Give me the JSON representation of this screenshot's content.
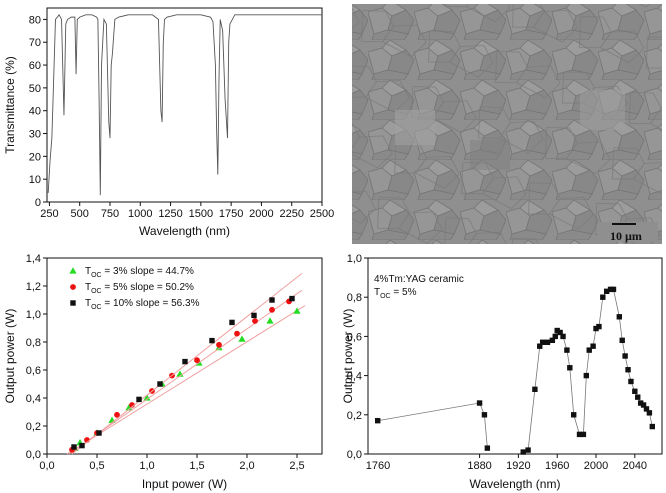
{
  "chart_data": [
    {
      "type": "line",
      "panel": "top-left",
      "xlabel": "Wavelength (nm)",
      "ylabel": "Transmittance (%)",
      "xlim": [
        230,
        2500
      ],
      "ylim": [
        0,
        85
      ],
      "xticks": [
        "250",
        "500",
        "750",
        "1000",
        "1250",
        "1500",
        "1750",
        "2000",
        "2250",
        "2500"
      ],
      "yticks": [
        "0",
        "10",
        "20",
        "30",
        "40",
        "50",
        "60",
        "70",
        "80"
      ],
      "series": [
        {
          "color": "#555555",
          "x": [
            240,
            255,
            270,
            280,
            300,
            330,
            350,
            370,
            385,
            400,
            430,
            460,
            470,
            480,
            500,
            550,
            600,
            640,
            650,
            660,
            670,
            680,
            700,
            720,
            740,
            750,
            760,
            770,
            790,
            820,
            900,
            1000,
            1100,
            1150,
            1170,
            1180,
            1190,
            1200,
            1220,
            1300,
            1400,
            1500,
            1580,
            1600,
            1620,
            1630,
            1640,
            1650,
            1660,
            1680,
            1700,
            1720,
            1730,
            1740,
            1760,
            1780,
            1800,
            1850,
            1900,
            2000,
            2100,
            2200,
            2300,
            2400,
            2500
          ],
          "y": [
            4,
            18,
            28,
            45,
            80,
            82,
            80,
            38,
            78,
            80,
            81,
            81,
            56,
            80,
            81,
            82,
            82,
            81,
            80,
            45,
            3,
            60,
            80,
            78,
            35,
            28,
            60,
            65,
            80,
            81,
            82,
            82,
            82,
            80,
            40,
            35,
            70,
            80,
            81,
            82,
            82,
            82,
            81,
            79,
            60,
            32,
            12,
            55,
            80,
            75,
            45,
            28,
            70,
            78,
            80,
            82,
            82,
            82,
            82,
            82,
            82,
            82,
            82,
            82,
            82
          ]
        }
      ]
    },
    {
      "type": "image",
      "panel": "top-right",
      "description": "microstructure micrograph",
      "scale_label": "10 µm"
    },
    {
      "type": "scatter",
      "panel": "bottom-left",
      "xlabel": "Input power (W)",
      "ylabel": "Output power (W)",
      "xlim": [
        0,
        2.75
      ],
      "ylim": [
        0,
        1.4
      ],
      "xticks": [
        "0,0",
        "0,5",
        "1,0",
        "1,5",
        "2,0",
        "2,5"
      ],
      "yticks": [
        "0,0",
        "0,2",
        "0,4",
        "0,6",
        "0,8",
        "1,0",
        "1,2",
        "1,4"
      ],
      "series": [
        {
          "name": "T_OC = 3% slope = 44.7%",
          "legend_main": "T",
          "legend_sub": "OC",
          "legend_rest": " = 3% slope = 44.7%",
          "marker": "triangle",
          "color": "#22dd22",
          "x": [
            0.28,
            0.33,
            0.5,
            0.65,
            0.82,
            1.0,
            1.15,
            1.33,
            1.52,
            1.72,
            1.95,
            2.23,
            2.5
          ],
          "y": [
            0.04,
            0.08,
            0.15,
            0.24,
            0.33,
            0.4,
            0.5,
            0.57,
            0.65,
            0.76,
            0.82,
            0.95,
            1.02
          ],
          "fit": [
            [
              0.2,
              0.0
            ],
            [
              2.58,
              1.06
            ]
          ]
        },
        {
          "name": "T_OC = 5% slope = 50.2%",
          "legend_main": "T",
          "legend_sub": "OC",
          "legend_rest": " = 5% slope = 50.2%",
          "marker": "circle",
          "color": "#ee1111",
          "x": [
            0.25,
            0.4,
            0.5,
            0.7,
            0.85,
            1.05,
            1.25,
            1.5,
            1.72,
            1.9,
            2.08,
            2.25,
            2.42
          ],
          "y": [
            0.03,
            0.1,
            0.15,
            0.28,
            0.35,
            0.45,
            0.56,
            0.67,
            0.78,
            0.86,
            0.95,
            1.03,
            1.09
          ],
          "fit": [
            [
              0.22,
              0.0
            ],
            [
              2.55,
              1.17
            ]
          ]
        },
        {
          "name": "T_OC = 10% slope = 56.3%",
          "legend_main": "T",
          "legend_sub": "OC",
          "legend_rest": " = 10% slope = 56.3%",
          "marker": "square",
          "color": "#111111",
          "x": [
            0.27,
            0.35,
            0.52,
            0.92,
            1.13,
            1.38,
            1.65,
            1.85,
            2.07,
            2.25,
            2.45
          ],
          "y": [
            0.05,
            0.06,
            0.15,
            0.39,
            0.5,
            0.66,
            0.81,
            0.94,
            0.99,
            1.1,
            1.11
          ],
          "fit": [
            [
              0.25,
              0.0
            ],
            [
              2.55,
              1.29
            ]
          ]
        }
      ]
    },
    {
      "type": "line",
      "panel": "bottom-right",
      "xlabel": "Wavelength (nm)",
      "ylabel": "Output power (W)",
      "xlim": [
        1765,
        2068
      ],
      "ylim": [
        0,
        1.0
      ],
      "xticks": [
        "1880",
        "1920",
        "1960",
        "2000",
        "2040"
      ],
      "xticks_extra": [
        "1760"
      ],
      "yticks": [
        "0,0",
        "0,2",
        "0,4",
        "0,6",
        "0,8",
        "1,0"
      ],
      "annotation": "4%Tm:YAG ceramic",
      "annotation2_main": "T",
      "annotation2_sub": "OC",
      "annotation2_rest": " = 5%",
      "series": [
        {
          "marker": "square",
          "color": "#111111",
          "segments": [
            {
              "x": [
                1775,
                1880,
                1885,
                1888
              ],
              "y": [
                0.17,
                0.26,
                0.2,
                0.03
              ]
            },
            {
              "x": [
                1925,
                1930,
                1937,
                1942,
                1945,
                1950,
                1955,
                1958,
                1960,
                1963,
                1966,
                1970,
                1973,
                1977,
                1983,
                1987,
                1990,
                1993,
                1997,
                2000,
                2003,
                2007,
                2011,
                2015,
                2018,
                2024,
                2027,
                2030,
                2033,
                2036,
                2040,
                2043,
                2046,
                2049,
                2052,
                2055,
                2058
              ],
              "y": [
                0.01,
                0.02,
                0.33,
                0.55,
                0.57,
                0.57,
                0.58,
                0.6,
                0.63,
                0.62,
                0.6,
                0.53,
                0.44,
                0.2,
                0.1,
                0.1,
                0.4,
                0.53,
                0.55,
                0.64,
                0.65,
                0.8,
                0.83,
                0.84,
                0.84,
                0.7,
                0.58,
                0.5,
                0.43,
                0.37,
                0.32,
                0.29,
                0.26,
                0.25,
                0.23,
                0.21,
                0.14
              ]
            }
          ]
        }
      ]
    }
  ]
}
